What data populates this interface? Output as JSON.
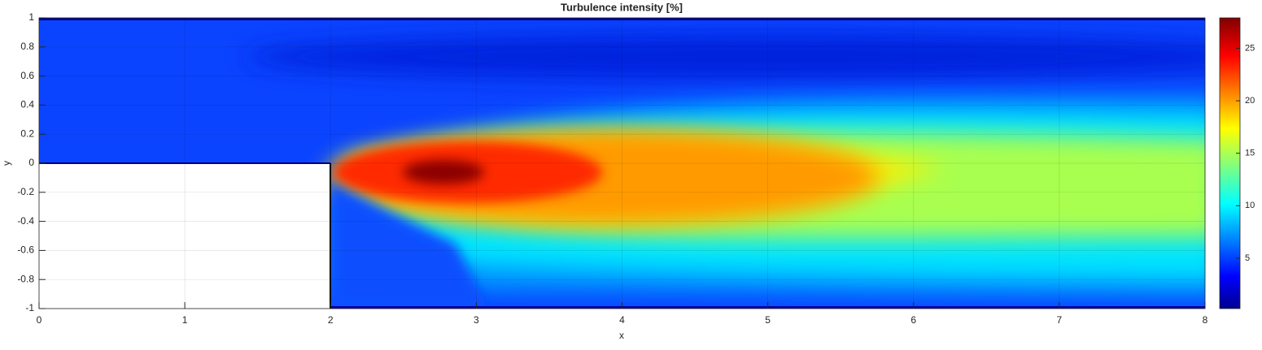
{
  "chart_data": {
    "type": "contour",
    "title": "Turbulence intensity [%]",
    "xlabel": "x",
    "ylabel": "y",
    "xlim": [
      0,
      8
    ],
    "xticks": [
      0,
      1,
      2,
      3,
      4,
      5,
      6,
      7,
      8
    ],
    "ylim": [
      -1,
      1
    ],
    "yticks": [
      -1,
      -0.8,
      -0.6,
      -0.4,
      -0.2,
      0,
      0.2,
      0.4,
      0.6,
      0.8,
      1
    ],
    "grid": true,
    "colormap": "jet",
    "clim": [
      0.2,
      27.9
    ],
    "colorbar_ticks": [
      5,
      10,
      15,
      20,
      25
    ]
  }
}
